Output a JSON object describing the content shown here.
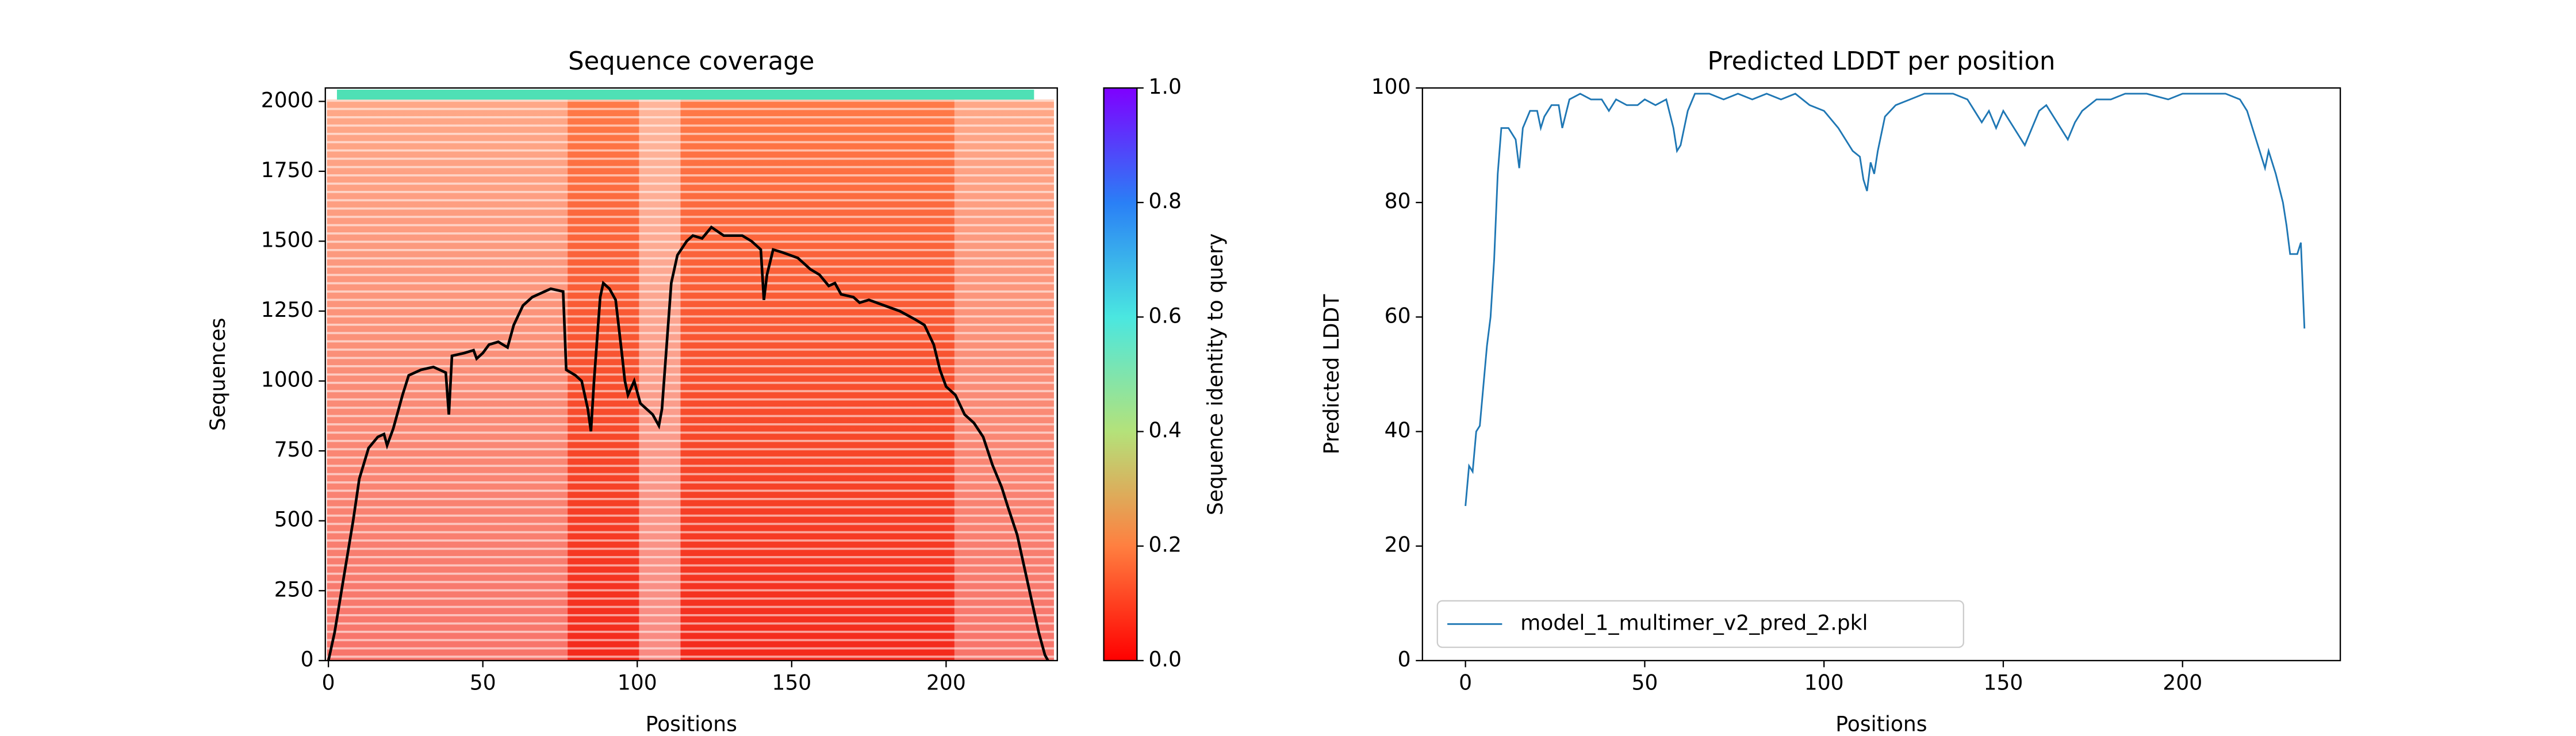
{
  "chart_data": [
    {
      "type": "line",
      "title": "Sequence coverage",
      "xlabel": "Positions",
      "ylabel": "Sequences",
      "xlim": [
        -1,
        236
      ],
      "ylim": [
        0,
        2048
      ],
      "xticks": [
        0,
        50,
        100,
        150,
        200
      ],
      "yticks": [
        0,
        250,
        500,
        750,
        1000,
        1250,
        1500,
        1750,
        2000
      ],
      "series": [
        {
          "color": "#000000",
          "x": [
            0,
            2,
            5,
            8,
            10,
            13,
            16,
            18,
            19,
            21,
            24,
            26,
            30,
            34,
            38,
            39,
            40,
            44,
            47,
            48,
            50,
            52,
            55,
            58,
            60,
            63,
            66,
            70,
            72,
            76,
            77,
            80,
            82,
            84,
            85,
            86,
            88,
            89,
            91,
            93,
            95,
            96,
            97,
            99,
            101,
            103,
            105,
            107,
            108,
            111,
            113,
            116,
            118,
            121,
            124,
            128,
            134,
            137,
            140,
            141,
            142,
            144,
            147,
            152,
            156,
            159,
            162,
            164,
            166,
            170,
            172,
            175,
            180,
            185,
            190,
            193,
            196,
            198,
            200,
            203,
            206,
            209,
            212,
            215,
            218,
            220,
            223,
            226,
            228,
            230,
            232,
            233
          ],
          "values": [
            0,
            100,
            300,
            500,
            650,
            760,
            800,
            810,
            770,
            830,
            950,
            1020,
            1040,
            1050,
            1030,
            880,
            1090,
            1100,
            1110,
            1080,
            1100,
            1130,
            1140,
            1120,
            1200,
            1270,
            1300,
            1320,
            1330,
            1320,
            1040,
            1020,
            1000,
            900,
            820,
            1000,
            1300,
            1350,
            1330,
            1290,
            1100,
            1000,
            950,
            1000,
            920,
            900,
            880,
            840,
            900,
            1350,
            1450,
            1500,
            1520,
            1510,
            1550,
            1520,
            1520,
            1500,
            1470,
            1290,
            1380,
            1470,
            1460,
            1440,
            1400,
            1380,
            1340,
            1350,
            1310,
            1300,
            1280,
            1290,
            1270,
            1250,
            1220,
            1200,
            1130,
            1040,
            980,
            950,
            880,
            850,
            800,
            700,
            620,
            550,
            450,
            300,
            200,
            100,
            20,
            0
          ]
        }
      ],
      "colorbar": {
        "label": "Sequence identity to query",
        "lim": [
          0,
          1
        ],
        "ticks": [
          {
            "value": 0,
            "label": "0.0"
          },
          0.2,
          0.4,
          0.6,
          0.8,
          {
            "value": 1,
            "label": "1.0"
          }
        ],
        "colors": [
          "#ff0000",
          "#ff7f40",
          "#b4e27a",
          "#4ae7e0",
          "#2a7ff6",
          "#7f00ff"
        ]
      }
    },
    {
      "type": "line",
      "title": "Predicted LDDT per position",
      "xlabel": "Positions",
      "ylabel": "Predicted LDDT",
      "xlim": [
        -12,
        244
      ],
      "ylim": [
        0,
        100
      ],
      "xticks": [
        0,
        50,
        100,
        150,
        200
      ],
      "yticks": [
        0,
        20,
        40,
        60,
        80,
        100
      ],
      "legend": "lower left",
      "series": [
        {
          "name": "model_1_multimer_v2_pred_2.pkl",
          "color": "#1f77b4",
          "x": [
            0,
            1,
            2,
            3,
            4,
            5,
            6,
            7,
            8,
            9,
            10,
            12,
            14,
            15,
            16,
            18,
            20,
            21,
            22,
            24,
            26,
            27,
            29,
            32,
            35,
            38,
            40,
            42,
            45,
            48,
            50,
            53,
            56,
            58,
            59,
            60,
            62,
            64,
            68,
            72,
            76,
            80,
            84,
            88,
            92,
            96,
            100,
            104,
            106,
            108,
            110,
            111,
            112,
            113,
            114,
            115,
            117,
            120,
            124,
            128,
            132,
            136,
            140,
            142,
            144,
            146,
            148,
            150,
            152,
            154,
            156,
            158,
            160,
            162,
            164,
            166,
            168,
            170,
            172,
            176,
            180,
            184,
            190,
            196,
            200,
            204,
            208,
            212,
            216,
            218,
            220,
            222,
            223,
            224,
            226,
            228,
            229,
            230,
            232,
            233,
            234
          ],
          "values": [
            27,
            34,
            33,
            40,
            41,
            48,
            55,
            60,
            70,
            85,
            93,
            93,
            91,
            86,
            93,
            96,
            96,
            93,
            95,
            97,
            97,
            93,
            98,
            99,
            98,
            98,
            96,
            98,
            97,
            97,
            98,
            97,
            98,
            93,
            89,
            90,
            96,
            99,
            99,
            98,
            99,
            98,
            99,
            98,
            99,
            97,
            96,
            93,
            91,
            89,
            88,
            84,
            82,
            87,
            85,
            89,
            95,
            97,
            98,
            99,
            99,
            99,
            98,
            96,
            94,
            96,
            93,
            96,
            94,
            92,
            90,
            93,
            96,
            97,
            95,
            93,
            91,
            94,
            96,
            98,
            98,
            99,
            99,
            98,
            99,
            99,
            99,
            99,
            98,
            96,
            92,
            88,
            86,
            89,
            85,
            80,
            76,
            71,
            71,
            73,
            58
          ]
        }
      ]
    }
  ]
}
